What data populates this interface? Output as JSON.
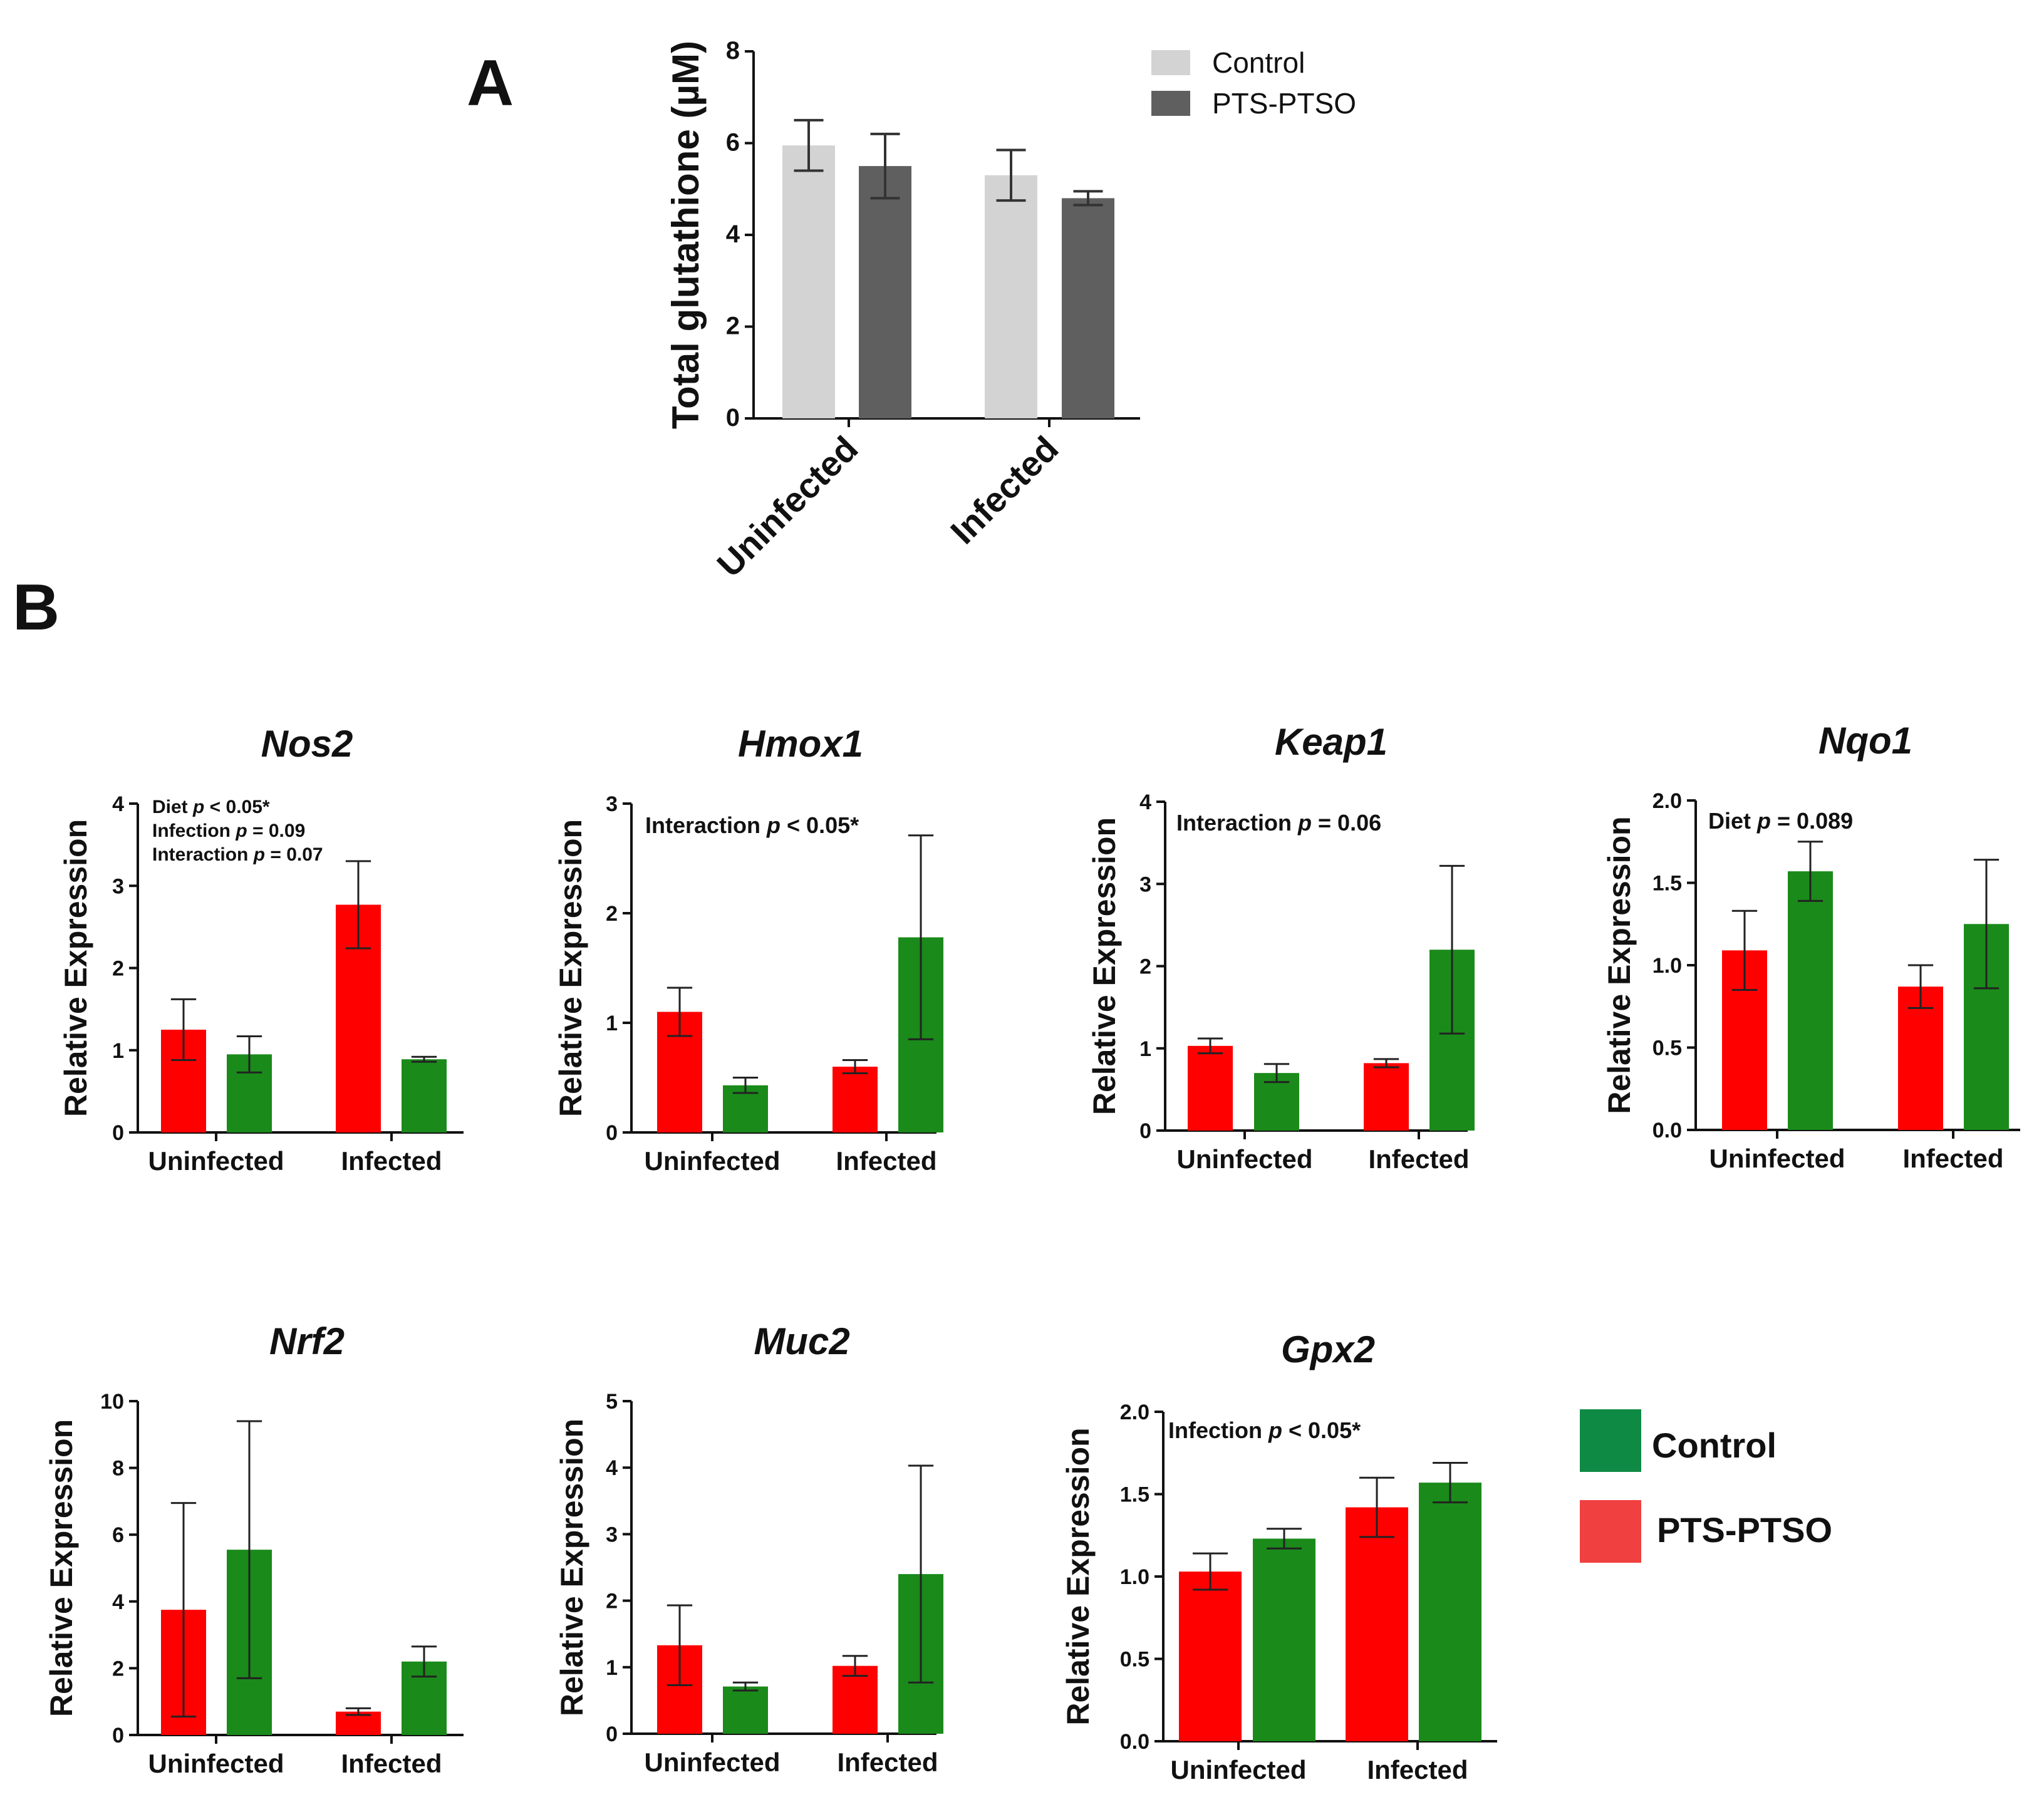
{
  "panels": {
    "a_label": "A",
    "b_label": "B"
  },
  "colors": {
    "control_a": "#d3d3d3",
    "pts_a": "#5f5f5f",
    "pts_b": "#ff0000",
    "control_b": "#1a8a1a",
    "legend_control_b": "#0f8a45",
    "legend_pts_b": "#f04040"
  },
  "legend_a": {
    "control": "Control",
    "pts": "PTS-PTSO"
  },
  "legend_b": {
    "control": "Control",
    "pts": "PTS-PTSO"
  },
  "chart_data": [
    {
      "id": "glutathione",
      "panel": "A",
      "type": "bar",
      "title": "",
      "ylabel": "Total glutathione (µM)",
      "xlabel": "",
      "categories": [
        "Uninfected",
        "Infected"
      ],
      "ylim": [
        0,
        8
      ],
      "yticks": [
        "0",
        "2",
        "4",
        "6",
        "8"
      ],
      "series": [
        {
          "name": "Control",
          "values": [
            5.95,
            5.3
          ],
          "errors": [
            0.55,
            0.55
          ]
        },
        {
          "name": "PTS-PTSO",
          "values": [
            5.5,
            4.8
          ],
          "errors": [
            0.7,
            0.15
          ]
        }
      ],
      "annotation": []
    },
    {
      "id": "nos2",
      "panel": "B",
      "type": "bar",
      "title": "Nos2",
      "ylabel": "Relative Expression",
      "categories": [
        "Uninfected",
        "Infected"
      ],
      "ylim": [
        0,
        4
      ],
      "yticks": [
        "0",
        "1",
        "2",
        "3",
        "4"
      ],
      "series": [
        {
          "name": "PTS-PTSO",
          "values": [
            1.25,
            2.77
          ],
          "errors": [
            0.37,
            0.53
          ]
        },
        {
          "name": "Control",
          "values": [
            0.95,
            0.89
          ],
          "errors": [
            0.22,
            0.03
          ]
        }
      ],
      "annotation": [
        {
          "label": "Diet ",
          "p": "p",
          "rest": " < 0.05*"
        },
        {
          "label": "Infection ",
          "p": "p",
          "rest": " = 0.09"
        },
        {
          "label": "Interaction ",
          "p": "p",
          "rest": " = 0.07"
        }
      ]
    },
    {
      "id": "hmox1",
      "panel": "B",
      "type": "bar",
      "title": "Hmox1",
      "ylabel": "Relative Expression",
      "categories": [
        "Uninfected",
        "Infected"
      ],
      "ylim": [
        0,
        3
      ],
      "yticks": [
        "0",
        "1",
        "2",
        "3"
      ],
      "series": [
        {
          "name": "PTS-PTSO",
          "values": [
            1.1,
            0.6
          ],
          "errors": [
            0.22,
            0.06
          ]
        },
        {
          "name": "Control",
          "values": [
            0.43,
            1.78
          ],
          "errors": [
            0.07,
            0.93
          ]
        }
      ],
      "annotation": [
        {
          "label": "Interaction ",
          "p": "p",
          "rest": " < 0.05*"
        }
      ]
    },
    {
      "id": "keap1",
      "panel": "B",
      "type": "bar",
      "title": "Keap1",
      "ylabel": "Relative Expression",
      "categories": [
        "Uninfected",
        "Infected"
      ],
      "ylim": [
        0,
        4
      ],
      "yticks": [
        "0",
        "1",
        "2",
        "3",
        "4"
      ],
      "series": [
        {
          "name": "PTS-PTSO",
          "values": [
            1.03,
            0.82
          ],
          "errors": [
            0.09,
            0.05
          ]
        },
        {
          "name": "Control",
          "values": [
            0.7,
            2.2
          ],
          "errors": [
            0.11,
            1.02
          ]
        }
      ],
      "annotation": [
        {
          "label": "Interaction ",
          "p": "p",
          "rest": " = 0.06"
        }
      ]
    },
    {
      "id": "nqo1",
      "panel": "B",
      "type": "bar",
      "title": "Nqo1",
      "ylabel": "Relative Expression",
      "categories": [
        "Uninfected",
        "Infected"
      ],
      "ylim": [
        0,
        2
      ],
      "yticks": [
        "0.0",
        "0.5",
        "1.0",
        "1.5",
        "2.0"
      ],
      "series": [
        {
          "name": "PTS-PTSO",
          "values": [
            1.09,
            0.87
          ],
          "errors": [
            0.24,
            0.13
          ]
        },
        {
          "name": "Control",
          "values": [
            1.57,
            1.25
          ],
          "errors": [
            0.18,
            0.39
          ]
        }
      ],
      "annotation": [
        {
          "label": "Diet ",
          "p": "p",
          "rest": " = 0.089"
        }
      ]
    },
    {
      "id": "nrf2",
      "panel": "B",
      "type": "bar",
      "title": "Nrf2",
      "ylabel": "Relative Expression",
      "categories": [
        "Uninfected",
        "Infected"
      ],
      "ylim": [
        0,
        10
      ],
      "yticks": [
        "0",
        "2",
        "4",
        "6",
        "8",
        "10"
      ],
      "series": [
        {
          "name": "PTS-PTSO",
          "values": [
            3.75,
            0.7
          ],
          "errors": [
            3.2,
            0.1
          ]
        },
        {
          "name": "Control",
          "values": [
            5.55,
            2.2
          ],
          "errors": [
            3.85,
            0.45
          ]
        }
      ],
      "annotation": []
    },
    {
      "id": "muc2",
      "panel": "B",
      "type": "bar",
      "title": "Muc2",
      "ylabel": "Relative Expression",
      "categories": [
        "Uninfected",
        "Infected"
      ],
      "ylim": [
        0,
        5
      ],
      "yticks": [
        "0",
        "1",
        "2",
        "3",
        "4",
        "5"
      ],
      "series": [
        {
          "name": "PTS-PTSO",
          "values": [
            1.33,
            1.02
          ],
          "errors": [
            0.6,
            0.15
          ]
        },
        {
          "name": "Control",
          "values": [
            0.71,
            2.4
          ],
          "errors": [
            0.06,
            1.63
          ]
        }
      ],
      "annotation": []
    },
    {
      "id": "gpx2",
      "panel": "B",
      "type": "bar",
      "title": "Gpx2",
      "ylabel": "Relative Expression",
      "categories": [
        "Uninfected",
        "Infected"
      ],
      "ylim": [
        0,
        2
      ],
      "yticks": [
        "0.0",
        "0.5",
        "1.0",
        "1.5",
        "2.0"
      ],
      "series": [
        {
          "name": "PTS-PTSO",
          "values": [
            1.03,
            1.42
          ],
          "errors": [
            0.11,
            0.18
          ]
        },
        {
          "name": "Control",
          "values": [
            1.23,
            1.57
          ],
          "errors": [
            0.06,
            0.12
          ]
        }
      ],
      "annotation": [
        {
          "label": "Infection ",
          "p": "p",
          "rest": " < 0.05*"
        }
      ]
    }
  ]
}
